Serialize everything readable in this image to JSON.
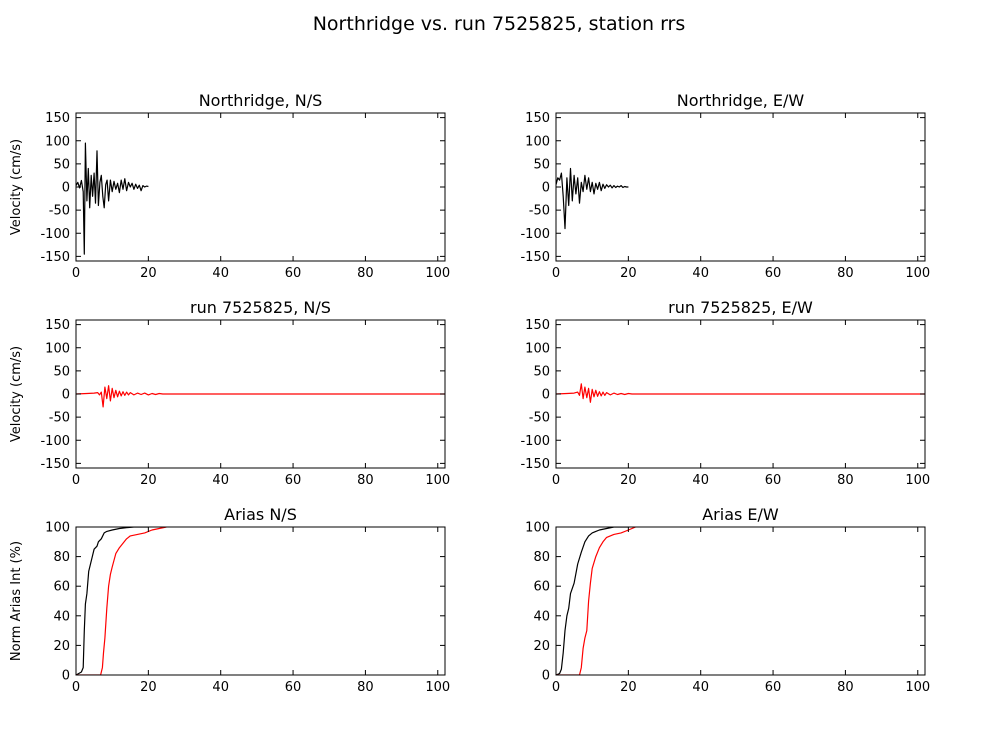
{
  "figure_title": "Northridge vs. run 7525825, station rrs",
  "colors": {
    "recorded": "#000000",
    "synthetic": "#ff0000"
  },
  "chart_data": [
    {
      "id": "vel-ns-rec",
      "type": "line",
      "title": "Northridge, N/S",
      "xlabel": "",
      "ylabel": "Velocity (cm/s)",
      "xlim": [
        0,
        102
      ],
      "ylim": [
        -160,
        160
      ],
      "xticks": [
        0,
        20,
        40,
        60,
        80,
        100
      ],
      "yticks": [
        -150,
        -100,
        -50,
        0,
        50,
        100,
        150
      ],
      "grid": false,
      "series": [
        {
          "color": "#000000",
          "points": [
            [
              0,
              3
            ],
            [
              0.5,
              10
            ],
            [
              1,
              -2
            ],
            [
              1.5,
              14
            ],
            [
              2,
              -10
            ],
            [
              2.3,
              -145
            ],
            [
              2.6,
              95
            ],
            [
              3,
              -30
            ],
            [
              3.4,
              40
            ],
            [
              3.8,
              -45
            ],
            [
              4.2,
              25
            ],
            [
              4.6,
              -20
            ],
            [
              5,
              30
            ],
            [
              5.4,
              -35
            ],
            [
              5.8,
              78
            ],
            [
              6.2,
              -40
            ],
            [
              6.6,
              10
            ],
            [
              7,
              25
            ],
            [
              7.4,
              -20
            ],
            [
              7.8,
              -45
            ],
            [
              8.2,
              5
            ],
            [
              8.6,
              15
            ],
            [
              9,
              -30
            ],
            [
              9.5,
              15
            ],
            [
              10,
              -10
            ],
            [
              10.5,
              12
            ],
            [
              11,
              -5
            ],
            [
              11.5,
              8
            ],
            [
              12,
              -12
            ],
            [
              12.5,
              15
            ],
            [
              13,
              -5
            ],
            [
              13.5,
              18
            ],
            [
              14,
              -8
            ],
            [
              14.5,
              10
            ],
            [
              15,
              0
            ],
            [
              15.5,
              8
            ],
            [
              16,
              -5
            ],
            [
              16.5,
              6
            ],
            [
              17,
              -3
            ],
            [
              17.5,
              4
            ],
            [
              18,
              -8
            ],
            [
              18.5,
              3
            ],
            [
              19,
              0
            ],
            [
              19.5,
              2
            ],
            [
              20,
              1
            ]
          ]
        }
      ]
    },
    {
      "id": "vel-ew-rec",
      "type": "line",
      "title": "Northridge, E/W",
      "xlabel": "",
      "ylabel": "",
      "xlim": [
        0,
        102
      ],
      "ylim": [
        -160,
        160
      ],
      "xticks": [
        0,
        20,
        40,
        60,
        80,
        100
      ],
      "yticks": [
        -150,
        -100,
        -50,
        0,
        50,
        100,
        150
      ],
      "grid": false,
      "series": [
        {
          "color": "#000000",
          "points": [
            [
              0,
              5
            ],
            [
              0.5,
              20
            ],
            [
              1,
              15
            ],
            [
              1.5,
              30
            ],
            [
              2,
              -20
            ],
            [
              2.5,
              -90
            ],
            [
              3,
              20
            ],
            [
              3.5,
              -40
            ],
            [
              4,
              40
            ],
            [
              4.5,
              -30
            ],
            [
              5,
              25
            ],
            [
              5.5,
              -15
            ],
            [
              6,
              20
            ],
            [
              6.5,
              -35
            ],
            [
              7,
              10
            ],
            [
              7.5,
              -10
            ],
            [
              8,
              25
            ],
            [
              8.5,
              -5
            ],
            [
              9,
              20
            ],
            [
              9.5,
              -10
            ],
            [
              10,
              10
            ],
            [
              10.5,
              -15
            ],
            [
              11,
              8
            ],
            [
              11.5,
              -5
            ],
            [
              12,
              10
            ],
            [
              12.5,
              -8
            ],
            [
              13,
              6
            ],
            [
              13.5,
              -3
            ],
            [
              14,
              5
            ],
            [
              14.5,
              0
            ],
            [
              15,
              4
            ],
            [
              15.5,
              -2
            ],
            [
              16,
              3
            ],
            [
              16.5,
              -1
            ],
            [
              17,
              2
            ],
            [
              17.5,
              0
            ],
            [
              18,
              3
            ],
            [
              18.5,
              -1
            ],
            [
              19,
              1
            ],
            [
              19.5,
              0
            ],
            [
              20,
              0
            ]
          ]
        }
      ]
    },
    {
      "id": "vel-ns-run",
      "type": "line",
      "title": "run 7525825, N/S",
      "xlabel": "",
      "ylabel": "Velocity (cm/s)",
      "xlim": [
        0,
        102
      ],
      "ylim": [
        -160,
        160
      ],
      "xticks": [
        0,
        20,
        40,
        60,
        80,
        100
      ],
      "yticks": [
        -150,
        -100,
        -50,
        0,
        50,
        100,
        150
      ],
      "grid": false,
      "series": [
        {
          "color": "#ff0000",
          "points": [
            [
              0,
              0
            ],
            [
              3,
              1
            ],
            [
              5,
              2
            ],
            [
              6,
              3
            ],
            [
              6.5,
              -2
            ],
            [
              7,
              4
            ],
            [
              7.5,
              -28
            ],
            [
              8,
              15
            ],
            [
              8.5,
              -10
            ],
            [
              9,
              18
            ],
            [
              9.5,
              -15
            ],
            [
              10,
              12
            ],
            [
              10.5,
              -8
            ],
            [
              11,
              8
            ],
            [
              11.5,
              -6
            ],
            [
              12,
              6
            ],
            [
              12.5,
              -4
            ],
            [
              13,
              5
            ],
            [
              13.5,
              -3
            ],
            [
              14,
              4
            ],
            [
              14.5,
              -2
            ],
            [
              15,
              3
            ],
            [
              16,
              -2
            ],
            [
              17,
              2
            ],
            [
              18,
              -1
            ],
            [
              19,
              2
            ],
            [
              20,
              -2
            ],
            [
              21,
              1
            ],
            [
              22,
              -1
            ],
            [
              23,
              1
            ],
            [
              24,
              0
            ],
            [
              25,
              0
            ],
            [
              102,
              0
            ]
          ]
        }
      ]
    },
    {
      "id": "vel-ew-run",
      "type": "line",
      "title": "run 7525825, E/W",
      "xlabel": "",
      "ylabel": "",
      "xlim": [
        0,
        102
      ],
      "ylim": [
        -160,
        160
      ],
      "xticks": [
        0,
        20,
        40,
        60,
        80,
        100
      ],
      "yticks": [
        -150,
        -100,
        -50,
        0,
        50,
        100,
        150
      ],
      "grid": false,
      "series": [
        {
          "color": "#ff0000",
          "points": [
            [
              0,
              0
            ],
            [
              3,
              1
            ],
            [
              5,
              2
            ],
            [
              6,
              4
            ],
            [
              6.5,
              -3
            ],
            [
              7,
              22
            ],
            [
              7.5,
              -10
            ],
            [
              8,
              15
            ],
            [
              8.5,
              -8
            ],
            [
              9,
              12
            ],
            [
              9.5,
              -18
            ],
            [
              10,
              10
            ],
            [
              10.5,
              -6
            ],
            [
              11,
              8
            ],
            [
              11.5,
              -5
            ],
            [
              12,
              5
            ],
            [
              12.5,
              -4
            ],
            [
              13,
              4
            ],
            [
              13.5,
              -3
            ],
            [
              14,
              3
            ],
            [
              15,
              -2
            ],
            [
              16,
              2
            ],
            [
              17,
              -1
            ],
            [
              18,
              1
            ],
            [
              19,
              -1
            ],
            [
              20,
              1
            ],
            [
              21,
              0
            ],
            [
              102,
              0
            ]
          ]
        }
      ]
    },
    {
      "id": "arias-ns",
      "type": "line",
      "title": "Arias N/S",
      "xlabel": "",
      "ylabel": "Norm Arias Int (%)",
      "xlim": [
        0,
        102
      ],
      "ylim": [
        0,
        100
      ],
      "xticks": [
        0,
        20,
        40,
        60,
        80,
        100
      ],
      "yticks": [
        0,
        20,
        40,
        60,
        80,
        100
      ],
      "grid": false,
      "series": [
        {
          "color": "#000000",
          "points": [
            [
              0,
              0
            ],
            [
              1.5,
              2
            ],
            [
              2,
              5
            ],
            [
              2.3,
              30
            ],
            [
              2.6,
              48
            ],
            [
              3,
              55
            ],
            [
              3.5,
              70
            ],
            [
              4,
              75
            ],
            [
              4.5,
              80
            ],
            [
              5,
              85
            ],
            [
              5.8,
              87
            ],
            [
              6.2,
              90
            ],
            [
              7,
              92
            ],
            [
              7.8,
              96
            ],
            [
              8.5,
              97
            ],
            [
              10,
              98
            ],
            [
              12,
              99
            ],
            [
              14,
              99.5
            ],
            [
              16,
              100
            ],
            [
              20,
              100
            ]
          ]
        },
        {
          "color": "#ff0000",
          "points": [
            [
              0,
              0
            ],
            [
              6.8,
              0
            ],
            [
              7.3,
              5
            ],
            [
              7.6,
              15
            ],
            [
              8,
              25
            ],
            [
              8.5,
              45
            ],
            [
              9,
              60
            ],
            [
              9.5,
              68
            ],
            [
              10,
              73
            ],
            [
              11,
              82
            ],
            [
              12,
              86
            ],
            [
              13,
              89
            ],
            [
              14,
              92
            ],
            [
              15,
              94
            ],
            [
              17,
              95
            ],
            [
              19,
              96
            ],
            [
              21,
              98
            ],
            [
              23,
              99
            ],
            [
              25,
              100
            ]
          ]
        }
      ]
    },
    {
      "id": "arias-ew",
      "type": "line",
      "title": "Arias E/W",
      "xlabel": "",
      "ylabel": "",
      "xlim": [
        0,
        102
      ],
      "ylim": [
        0,
        100
      ],
      "xticks": [
        0,
        20,
        40,
        60,
        80,
        100
      ],
      "yticks": [
        0,
        20,
        40,
        60,
        80,
        100
      ],
      "grid": false,
      "series": [
        {
          "color": "#000000",
          "points": [
            [
              0,
              0
            ],
            [
              1,
              1
            ],
            [
              1.5,
              4
            ],
            [
              2,
              15
            ],
            [
              2.5,
              30
            ],
            [
              3,
              40
            ],
            [
              3.5,
              45
            ],
            [
              4,
              55
            ],
            [
              5,
              62
            ],
            [
              6,
              75
            ],
            [
              7,
              83
            ],
            [
              8,
              90
            ],
            [
              9,
              94
            ],
            [
              10,
              96
            ],
            [
              11,
              97
            ],
            [
              12,
              98
            ],
            [
              14,
              99
            ],
            [
              16,
              100
            ],
            [
              20,
              100
            ]
          ]
        },
        {
          "color": "#ff0000",
          "points": [
            [
              0,
              0
            ],
            [
              6.5,
              0
            ],
            [
              7,
              5
            ],
            [
              7.5,
              18
            ],
            [
              8,
              25
            ],
            [
              8.5,
              30
            ],
            [
              9,
              50
            ],
            [
              9.5,
              62
            ],
            [
              10,
              72
            ],
            [
              11,
              80
            ],
            [
              12,
              86
            ],
            [
              13,
              90
            ],
            [
              14,
              93
            ],
            [
              16,
              95
            ],
            [
              18,
              96
            ],
            [
              20,
              98
            ],
            [
              22,
              100
            ]
          ]
        }
      ]
    }
  ]
}
